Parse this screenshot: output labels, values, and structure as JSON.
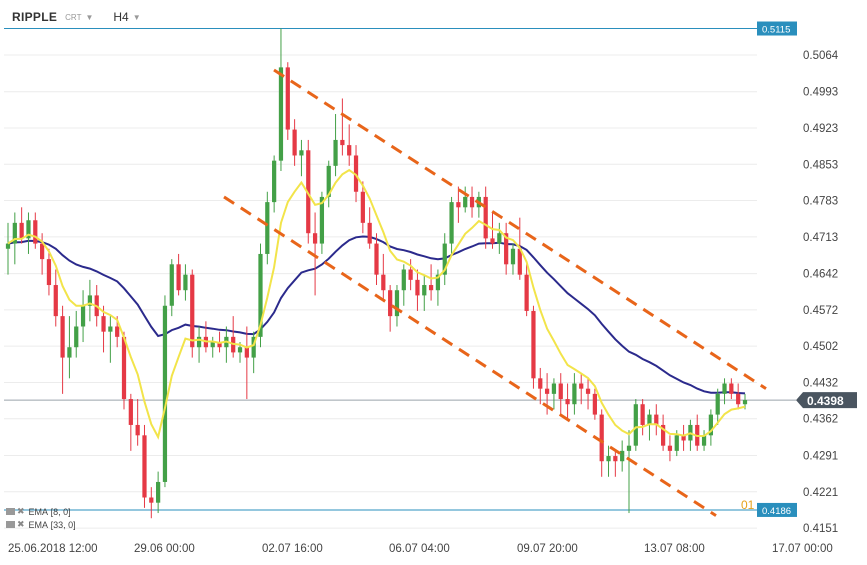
{
  "header": {
    "symbol": "RIPPLE",
    "category": "CRT",
    "timeframe": "H4"
  },
  "indicators": [
    {
      "label": "EMA",
      "params": "[8, 0]"
    },
    {
      "label": "EMA",
      "params": "[33, 0]"
    }
  ],
  "colors": {
    "up": "#43a047",
    "down": "#e53945",
    "ema_fast": "#f2e44a",
    "ema_slow": "#2b2a8c",
    "channel": "#e8651a",
    "hline": "#2a8fbd",
    "price_tag": "#4a5560",
    "grid": "#ececec"
  },
  "price_tag": "0.4398",
  "hline_tags": [
    "0.5115",
    "0.4186"
  ],
  "partial_label": "01",
  "chart_data": {
    "type": "candlestick",
    "title": "",
    "ylim": [
      0.4128,
      0.5143
    ],
    "y_ticks": [
      "0.5064",
      "0.4993",
      "0.4923",
      "0.4853",
      "0.4783",
      "0.4713",
      "0.4642",
      "0.4572",
      "0.4502",
      "0.4432",
      "0.4362",
      "0.4291",
      "0.4221",
      "0.4151"
    ],
    "x_ticks": [
      "25.06.2018  12:00",
      "29.06  00:00",
      "02.07  16:00",
      "06.07  04:00",
      "09.07  20:00",
      "13.07  08:00",
      "17.07  00:00"
    ],
    "current_price": 0.4398,
    "horizontal_lines": [
      0.5115,
      0.4186
    ],
    "channel_upper": [
      [
        0.5035,
        0.442
      ]
    ],
    "channel_lower": [
      [
        0.479,
        0.4175
      ]
    ],
    "ohlc": [
      [
        0.469,
        0.474,
        0.464,
        0.47
      ],
      [
        0.47,
        0.476,
        0.466,
        0.474
      ],
      [
        0.474,
        0.477,
        0.47,
        0.471
      ],
      [
        0.471,
        0.476,
        0.468,
        0.4745
      ],
      [
        0.4745,
        0.476,
        0.469,
        0.47
      ],
      [
        0.47,
        0.472,
        0.464,
        0.467
      ],
      [
        0.467,
        0.469,
        0.46,
        0.462
      ],
      [
        0.462,
        0.465,
        0.454,
        0.456
      ],
      [
        0.456,
        0.458,
        0.441,
        0.448
      ],
      [
        0.448,
        0.456,
        0.444,
        0.45
      ],
      [
        0.45,
        0.457,
        0.448,
        0.454
      ],
      [
        0.454,
        0.461,
        0.451,
        0.458
      ],
      [
        0.458,
        0.463,
        0.455,
        0.46
      ],
      [
        0.46,
        0.462,
        0.454,
        0.456
      ],
      [
        0.456,
        0.458,
        0.449,
        0.453
      ],
      [
        0.453,
        0.456,
        0.447,
        0.454
      ],
      [
        0.454,
        0.456,
        0.45,
        0.452
      ],
      [
        0.452,
        0.453,
        0.438,
        0.44
      ],
      [
        0.44,
        0.441,
        0.43,
        0.435
      ],
      [
        0.435,
        0.44,
        0.431,
        0.433
      ],
      [
        0.433,
        0.435,
        0.419,
        0.421
      ],
      [
        0.421,
        0.423,
        0.417,
        0.42
      ],
      [
        0.42,
        0.426,
        0.418,
        0.424
      ],
      [
        0.424,
        0.46,
        0.423,
        0.458
      ],
      [
        0.458,
        0.467,
        0.456,
        0.466
      ],
      [
        0.466,
        0.468,
        0.46,
        0.461
      ],
      [
        0.461,
        0.466,
        0.459,
        0.464
      ],
      [
        0.464,
        0.465,
        0.448,
        0.45
      ],
      [
        0.45,
        0.454,
        0.447,
        0.452
      ],
      [
        0.452,
        0.455,
        0.449,
        0.45
      ],
      [
        0.45,
        0.452,
        0.448,
        0.451
      ],
      [
        0.451,
        0.453,
        0.449,
        0.45
      ],
      [
        0.45,
        0.454,
        0.447,
        0.452
      ],
      [
        0.452,
        0.456,
        0.448,
        0.449
      ],
      [
        0.449,
        0.451,
        0.447,
        0.45
      ],
      [
        0.45,
        0.454,
        0.44,
        0.448
      ],
      [
        0.448,
        0.453,
        0.445,
        0.452
      ],
      [
        0.452,
        0.47,
        0.45,
        0.468
      ],
      [
        0.468,
        0.48,
        0.466,
        0.478
      ],
      [
        0.478,
        0.487,
        0.476,
        0.486
      ],
      [
        0.486,
        0.5115,
        0.484,
        0.504
      ],
      [
        0.504,
        0.505,
        0.49,
        0.492
      ],
      [
        0.492,
        0.494,
        0.485,
        0.487
      ],
      [
        0.487,
        0.49,
        0.483,
        0.488
      ],
      [
        0.488,
        0.49,
        0.47,
        0.472
      ],
      [
        0.472,
        0.476,
        0.46,
        0.47
      ],
      [
        0.47,
        0.48,
        0.468,
        0.479
      ],
      [
        0.479,
        0.486,
        0.477,
        0.485
      ],
      [
        0.485,
        0.495,
        0.483,
        0.49
      ],
      [
        0.49,
        0.498,
        0.487,
        0.489
      ],
      [
        0.489,
        0.493,
        0.485,
        0.487
      ],
      [
        0.487,
        0.489,
        0.478,
        0.48
      ],
      [
        0.48,
        0.482,
        0.472,
        0.474
      ],
      [
        0.474,
        0.477,
        0.469,
        0.47
      ],
      [
        0.47,
        0.472,
        0.462,
        0.464
      ],
      [
        0.464,
        0.468,
        0.459,
        0.461
      ],
      [
        0.461,
        0.462,
        0.453,
        0.456
      ],
      [
        0.456,
        0.462,
        0.454,
        0.461
      ],
      [
        0.461,
        0.466,
        0.458,
        0.465
      ],
      [
        0.465,
        0.467,
        0.461,
        0.463
      ],
      [
        0.463,
        0.465,
        0.457,
        0.46
      ],
      [
        0.46,
        0.464,
        0.457,
        0.462
      ],
      [
        0.462,
        0.466,
        0.459,
        0.461
      ],
      [
        0.461,
        0.465,
        0.458,
        0.464
      ],
      [
        0.464,
        0.472,
        0.462,
        0.47
      ],
      [
        0.47,
        0.479,
        0.468,
        0.478
      ],
      [
        0.478,
        0.481,
        0.474,
        0.477
      ],
      [
        0.477,
        0.481,
        0.476,
        0.479
      ],
      [
        0.479,
        0.481,
        0.475,
        0.477
      ],
      [
        0.477,
        0.48,
        0.475,
        0.479
      ],
      [
        0.479,
        0.481,
        0.469,
        0.471
      ],
      [
        0.471,
        0.476,
        0.469,
        0.47
      ],
      [
        0.47,
        0.474,
        0.468,
        0.472
      ],
      [
        0.472,
        0.474,
        0.464,
        0.466
      ],
      [
        0.466,
        0.47,
        0.464,
        0.469
      ],
      [
        0.469,
        0.475,
        0.463,
        0.464
      ],
      [
        0.464,
        0.466,
        0.456,
        0.457
      ],
      [
        0.457,
        0.458,
        0.442,
        0.444
      ],
      [
        0.444,
        0.446,
        0.439,
        0.442
      ],
      [
        0.442,
        0.445,
        0.437,
        0.441
      ],
      [
        0.441,
        0.444,
        0.438,
        0.443
      ],
      [
        0.443,
        0.445,
        0.437,
        0.44
      ],
      [
        0.44,
        0.443,
        0.436,
        0.439
      ],
      [
        0.439,
        0.445,
        0.437,
        0.443
      ],
      [
        0.443,
        0.445,
        0.439,
        0.442
      ],
      [
        0.442,
        0.444,
        0.438,
        0.441
      ],
      [
        0.441,
        0.442,
        0.436,
        0.437
      ],
      [
        0.437,
        0.438,
        0.425,
        0.428
      ],
      [
        0.428,
        0.431,
        0.425,
        0.429
      ],
      [
        0.429,
        0.43,
        0.425,
        0.428
      ],
      [
        0.428,
        0.432,
        0.426,
        0.43
      ],
      [
        0.43,
        0.434,
        0.418,
        0.431
      ],
      [
        0.431,
        0.44,
        0.43,
        0.439
      ],
      [
        0.439,
        0.44,
        0.433,
        0.435
      ],
      [
        0.435,
        0.438,
        0.432,
        0.437
      ],
      [
        0.437,
        0.439,
        0.433,
        0.435
      ],
      [
        0.435,
        0.437,
        0.43,
        0.431
      ],
      [
        0.431,
        0.433,
        0.428,
        0.43
      ],
      [
        0.43,
        0.434,
        0.429,
        0.433
      ],
      [
        0.433,
        0.435,
        0.43,
        0.432
      ],
      [
        0.432,
        0.436,
        0.43,
        0.435
      ],
      [
        0.435,
        0.437,
        0.43,
        0.431
      ],
      [
        0.431,
        0.434,
        0.43,
        0.433
      ],
      [
        0.433,
        0.438,
        0.431,
        0.437
      ],
      [
        0.437,
        0.442,
        0.435,
        0.441
      ],
      [
        0.441,
        0.444,
        0.439,
        0.443
      ],
      [
        0.443,
        0.444,
        0.44,
        0.441
      ],
      [
        0.441,
        0.443,
        0.438,
        0.439
      ],
      [
        0.439,
        0.441,
        0.438,
        0.4398
      ]
    ]
  }
}
